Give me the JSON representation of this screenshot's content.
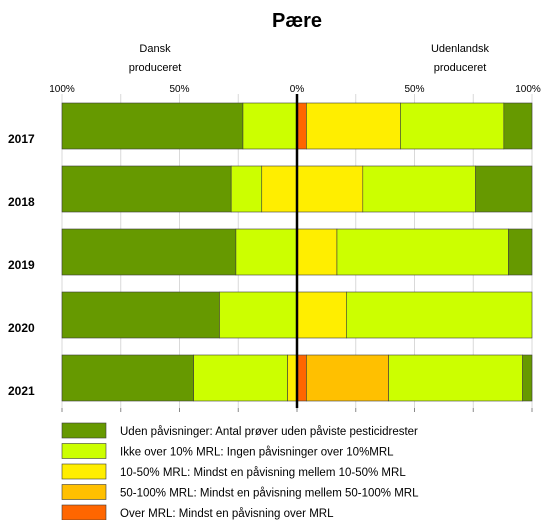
{
  "chart_data": {
    "type": "bar",
    "orientation": "horizontal",
    "stacked": "diverging",
    "title": "Pære",
    "left_header": [
      "Dansk",
      "produceret"
    ],
    "right_header": [
      "Udenlandsk",
      "produceret"
    ],
    "tick_labels": [
      "100%",
      "50%",
      "0%",
      "50%",
      "100%"
    ],
    "xlim": [
      -100,
      100
    ],
    "categories": [
      "2017",
      "2018",
      "2019",
      "2020",
      "2021"
    ],
    "series": [
      {
        "name": "Uden påvisninger: Antal prøver uden påviste pesticidrester",
        "color": "#669900",
        "dansk": [
          77,
          72,
          74,
          67,
          56
        ],
        "udenlandsk": [
          12,
          24,
          10,
          0,
          4
        ]
      },
      {
        "name": "Ikke over 10% MRL: Ingen påvisninger over 10%MRL",
        "color": "#ccff00",
        "dansk": [
          23,
          13,
          26,
          33,
          40
        ],
        "udenlandsk": [
          44,
          48,
          73,
          79,
          57
        ]
      },
      {
        "name": "10-50% MRL: Mindst en påvisning mellem 10-50% MRL",
        "color": "#ffee00",
        "dansk": [
          0,
          15,
          0,
          0,
          4
        ],
        "udenlandsk": [
          40,
          28,
          17,
          21,
          0
        ]
      },
      {
        "name": "50-100% MRL: Mindst en påvisning mellem 50-100% MRL",
        "color": "#ffc000",
        "dansk": [
          0,
          0,
          0,
          0,
          0
        ],
        "udenlandsk": [
          0,
          0,
          0,
          0,
          35
        ]
      },
      {
        "name": "Over MRL:  Mindst en påvisning over MRL",
        "color": "#ff6600",
        "dansk": [
          0,
          0,
          0,
          0,
          0
        ],
        "udenlandsk": [
          4,
          0,
          0,
          0,
          4
        ]
      }
    ]
  }
}
